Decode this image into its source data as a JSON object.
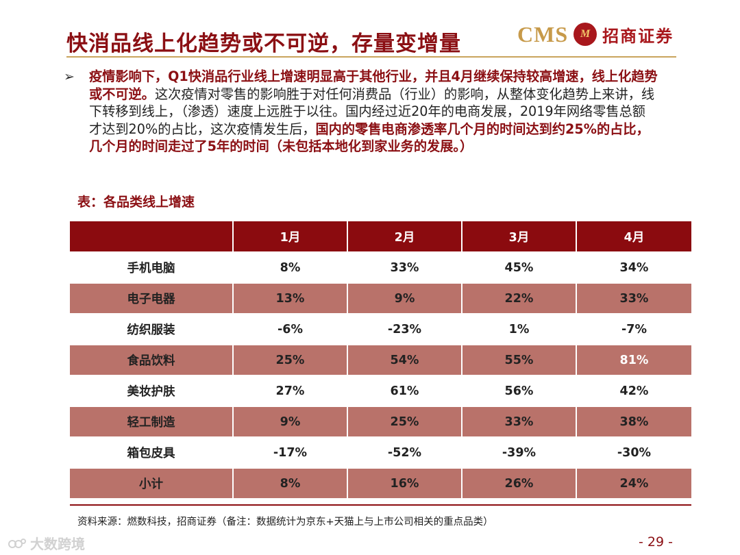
{
  "header": {
    "title": "快消品线上化趋势或不可逆，存量变增量",
    "logo_cms": "CMS",
    "logo_seal": "M",
    "logo_cn": "招商证券"
  },
  "body": {
    "bullet": "➢",
    "seg1": "疫情影响下，Q1快消品行业线上增速明显高于其他行业，并且4月继续保持较高增速，线上化趋势或不可逆。",
    "seg2": "这次疫情对零售的影响胜于对任何消费品（行业）的影响，从整体变化趋势上来讲，线下转移到线上，（渗透）速度上远胜于以往。国内经过近20年的电商发展，2019年网络零售总额才达到20%的占比，这次疫情发生后，",
    "seg3": "国内的零售电商渗透率几个月的时间达到约25%的占比，几个月的时间走过了5年的时间（未包括本地化到家业务的发展。）"
  },
  "table": {
    "caption": "表：各品类线上增速",
    "headers": [
      "",
      "1月",
      "2月",
      "3月",
      "4月"
    ],
    "rows": [
      [
        "手机电脑",
        "8%",
        "33%",
        "45%",
        "34%"
      ],
      [
        "电子电器",
        "13%",
        "9%",
        "22%",
        "33%"
      ],
      [
        "纺织服装",
        "-6%",
        "-23%",
        "1%",
        "-7%"
      ],
      [
        "食品饮料",
        "25%",
        "54%",
        "55%",
        "81%"
      ],
      [
        "美妆护肤",
        "27%",
        "61%",
        "56%",
        "42%"
      ],
      [
        "轻工制造",
        "9%",
        "25%",
        "33%",
        "38%"
      ],
      [
        "箱包皮具",
        "-17%",
        "-52%",
        "-39%",
        "-30%"
      ],
      [
        "小计",
        "8%",
        "16%",
        "26%",
        "24%"
      ]
    ]
  },
  "footer": {
    "source": "资料来源：燃数科技，招商证券（备注：数据统计为京东+天猫上与上市公司相关的重点品类）",
    "page": "- 29 -",
    "watermark": "大数跨境"
  },
  "colors": {
    "brand_red": "#8b0f13",
    "header_fill": "#8b0b0f",
    "row_dark": "#b9726a",
    "gold": "#c9a45c",
    "highlight_cell": "#ffffff"
  }
}
